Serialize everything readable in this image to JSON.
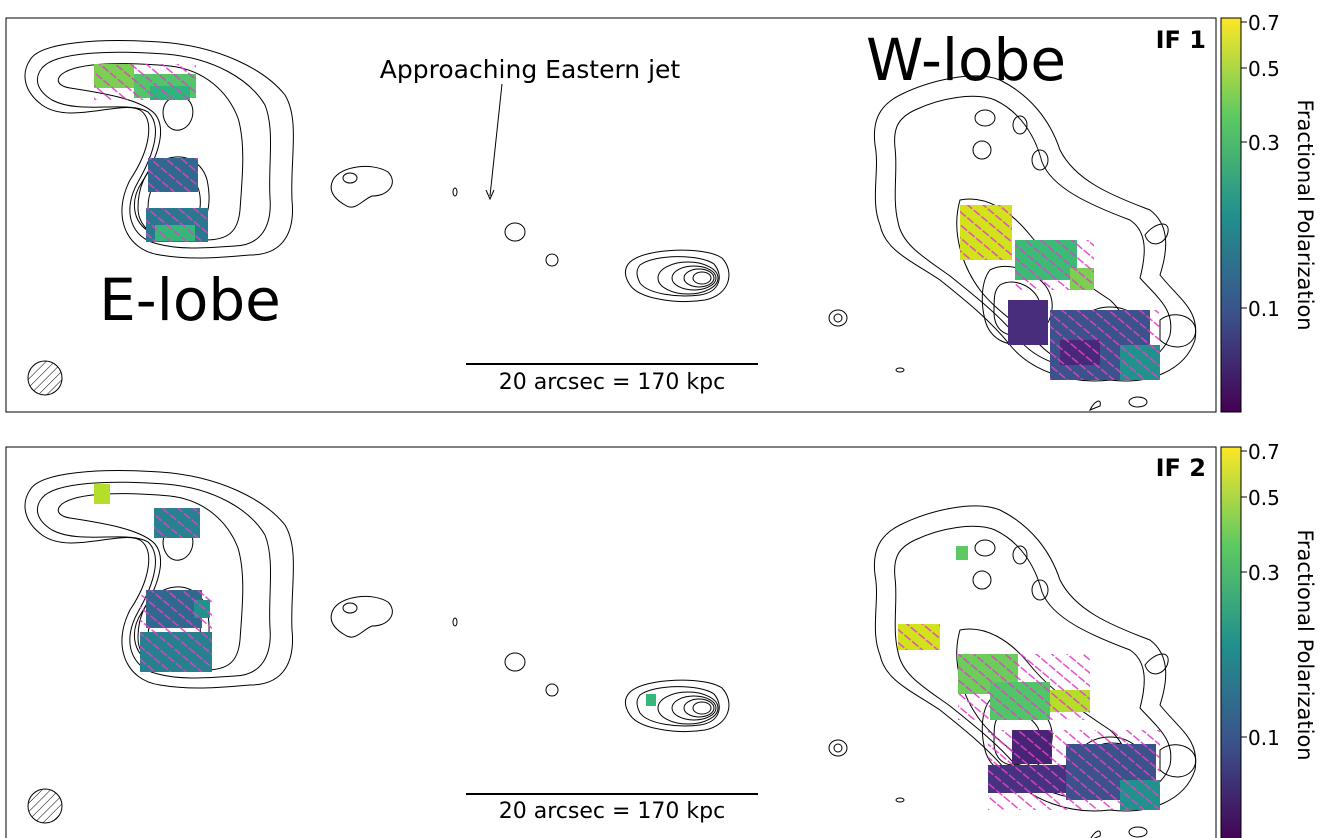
{
  "panels": [
    {
      "id": "IF1",
      "label": "IF 1",
      "annotations": {
        "e_lobe": "E-lobe",
        "w_lobe": "W-lobe",
        "jet": "Approaching Eastern jet",
        "scale_bar": "20 arcsec = 170 kpc"
      },
      "colorbar": {
        "label": "Fractional Polarization",
        "ticks": [
          "0.7",
          "0.5",
          "0.3",
          "0.1"
        ]
      }
    },
    {
      "id": "IF2",
      "label": "IF 2",
      "annotations": {
        "scale_bar": "20 arcsec = 170 kpc"
      },
      "colorbar": {
        "label": "Fractional Polarization",
        "ticks": [
          "0.7",
          "0.5",
          "0.3",
          "0.1"
        ]
      }
    }
  ],
  "colors": {
    "contour": "#000000",
    "vectors": "#e040c8",
    "cmap": [
      "#440154",
      "#3b528b",
      "#21908d",
      "#5dc962",
      "#fde725"
    ]
  }
}
